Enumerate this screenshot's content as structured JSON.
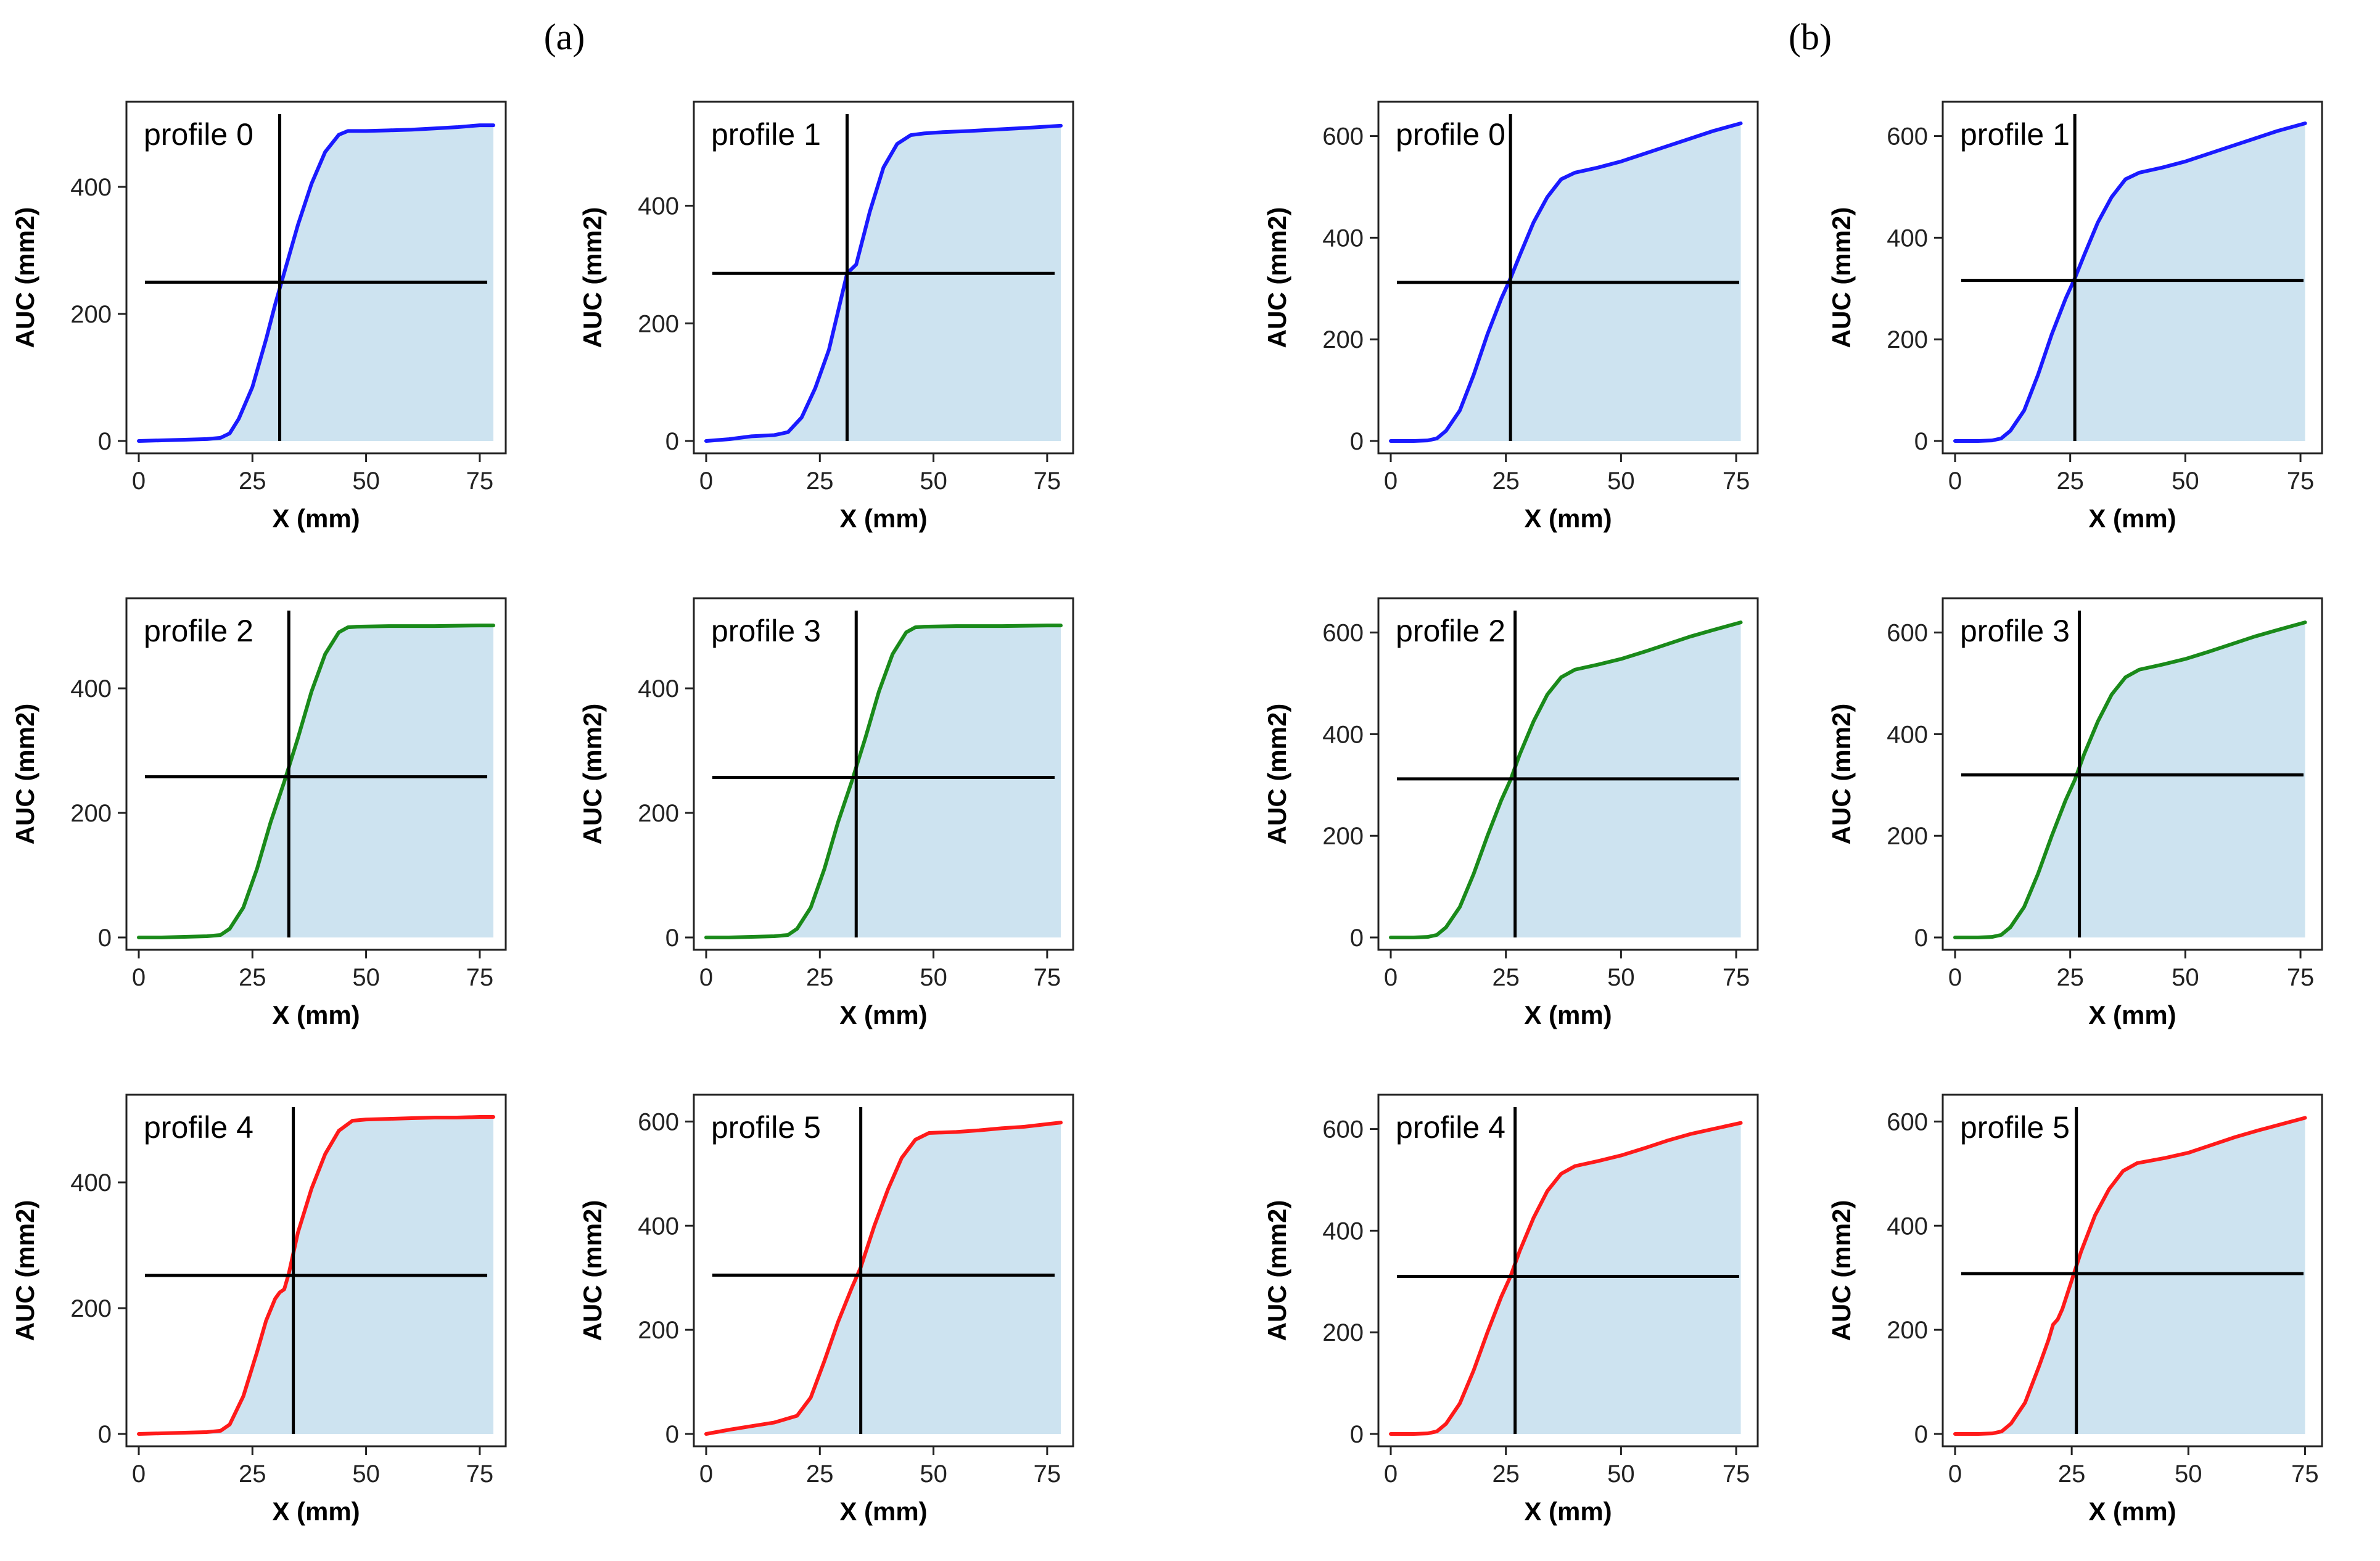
{
  "figure": {
    "group_labels": [
      "(a)",
      "(b)"
    ]
  },
  "chart_data": [
    {
      "type": "area",
      "group": "(a)",
      "title": "profile 0",
      "xlabel": "X (mm)",
      "ylabel": "AUC (mm2)",
      "color": "#1a1aff",
      "xlim": [
        0,
        78
      ],
      "ylim": [
        0,
        500
      ],
      "xticks": [
        0,
        25,
        50,
        75
      ],
      "yticks": [
        0,
        200,
        400
      ],
      "x": [
        0,
        5,
        10,
        15,
        18,
        20,
        22,
        25,
        28,
        30,
        32,
        35,
        38,
        41,
        44,
        46,
        50,
        55,
        60,
        65,
        70,
        75,
        78
      ],
      "y": [
        0,
        1,
        2,
        3,
        5,
        12,
        35,
        85,
        160,
        215,
        265,
        340,
        405,
        455,
        482,
        488,
        488,
        489,
        490,
        492,
        494,
        497,
        497
      ],
      "crosshair": {
        "x": 31,
        "y": 250
      }
    },
    {
      "type": "area",
      "group": "(a)",
      "title": "profile 1",
      "xlabel": "X (mm)",
      "ylabel": "AUC (mm2)",
      "color": "#1a1aff",
      "xlim": [
        0,
        78
      ],
      "ylim": [
        0,
        540
      ],
      "xticks": [
        0,
        25,
        50,
        75
      ],
      "yticks": [
        0,
        200,
        400
      ],
      "x": [
        0,
        5,
        10,
        15,
        18,
        21,
        24,
        27,
        29,
        31,
        33,
        36,
        39,
        42,
        45,
        48,
        52,
        58,
        65,
        72,
        78
      ],
      "y": [
        0,
        3,
        8,
        10,
        15,
        40,
        90,
        155,
        220,
        285,
        300,
        390,
        465,
        505,
        520,
        523,
        525,
        527,
        530,
        533,
        536
      ],
      "crosshair": {
        "x": 31,
        "y": 285
      }
    },
    {
      "type": "area",
      "group": "(a)",
      "title": "profile 2",
      "xlabel": "X (mm)",
      "ylabel": "AUC (mm2)",
      "color": "#1a8a1a",
      "xlim": [
        0,
        78
      ],
      "ylim": [
        0,
        510
      ],
      "xticks": [
        0,
        25,
        50,
        75
      ],
      "yticks": [
        0,
        200,
        400
      ],
      "x": [
        0,
        5,
        10,
        15,
        18,
        20,
        23,
        26,
        29,
        32,
        35,
        38,
        41,
        44,
        46,
        48,
        55,
        65,
        75,
        78
      ],
      "y": [
        0,
        0,
        1,
        2,
        4,
        14,
        48,
        110,
        185,
        250,
        320,
        395,
        455,
        490,
        498,
        499,
        500,
        500,
        501,
        501
      ],
      "crosshair": {
        "x": 33,
        "y": 258
      }
    },
    {
      "type": "area",
      "group": "(a)",
      "title": "profile 3",
      "xlabel": "X (mm)",
      "ylabel": "AUC (mm2)",
      "color": "#1a8a1a",
      "xlim": [
        0,
        78
      ],
      "ylim": [
        0,
        510
      ],
      "xticks": [
        0,
        25,
        50,
        75
      ],
      "yticks": [
        0,
        200,
        400
      ],
      "x": [
        0,
        5,
        10,
        15,
        18,
        20,
        23,
        26,
        29,
        32,
        35,
        38,
        41,
        44,
        46,
        48,
        55,
        65,
        75,
        78
      ],
      "y": [
        0,
        0,
        1,
        2,
        4,
        14,
        48,
        110,
        185,
        250,
        320,
        395,
        455,
        490,
        498,
        499,
        500,
        500,
        501,
        501
      ],
      "crosshair": {
        "x": 33,
        "y": 257
      }
    },
    {
      "type": "area",
      "group": "(a)",
      "title": "profile 4",
      "xlabel": "X (mm)",
      "ylabel": "AUC (mm2)",
      "color": "#ff1a1a",
      "xlim": [
        0,
        78
      ],
      "ylim": [
        0,
        505
      ],
      "xticks": [
        0,
        25,
        50,
        75
      ],
      "yticks": [
        0,
        200,
        400
      ],
      "x": [
        0,
        5,
        10,
        15,
        18,
        20,
        23,
        26,
        28,
        30,
        31,
        32,
        33,
        35,
        38,
        41,
        44,
        47,
        50,
        55,
        60,
        65,
        70,
        75,
        78
      ],
      "y": [
        0,
        1,
        2,
        3,
        5,
        15,
        60,
        130,
        180,
        215,
        225,
        230,
        255,
        320,
        390,
        445,
        482,
        498,
        500,
        501,
        502,
        503,
        503,
        504,
        504
      ],
      "crosshair": {
        "x": 34,
        "y": 252
      }
    },
    {
      "type": "area",
      "group": "(a)",
      "title": "profile 5",
      "xlabel": "X (mm)",
      "ylabel": "AUC (mm2)",
      "color": "#ff1a1a",
      "xlim": [
        0,
        78
      ],
      "ylim": [
        0,
        610
      ],
      "xticks": [
        0,
        25,
        50,
        75
      ],
      "yticks": [
        0,
        200,
        400,
        600
      ],
      "x": [
        0,
        5,
        10,
        15,
        20,
        23,
        26,
        29,
        32,
        34,
        37,
        40,
        43,
        46,
        49,
        55,
        60,
        65,
        70,
        75,
        78
      ],
      "y": [
        0,
        8,
        15,
        22,
        35,
        70,
        140,
        215,
        280,
        320,
        400,
        470,
        530,
        565,
        578,
        580,
        583,
        587,
        590,
        595,
        598
      ],
      "crosshair": {
        "x": 34,
        "y": 305
      }
    },
    {
      "type": "area",
      "group": "(b)",
      "title": "profile 0",
      "xlabel": "X (mm)",
      "ylabel": "AUC (mm2)",
      "color": "#1a1aff",
      "xlim": [
        0,
        77
      ],
      "ylim": [
        0,
        625
      ],
      "xticks": [
        0,
        25,
        50,
        75
      ],
      "yticks": [
        0,
        200,
        400,
        600
      ],
      "x": [
        0,
        5,
        8,
        10,
        12,
        15,
        18,
        21,
        24,
        26,
        28,
        31,
        34,
        37,
        40,
        45,
        50,
        55,
        60,
        65,
        70,
        76
      ],
      "y": [
        0,
        0,
        1,
        5,
        20,
        60,
        130,
        210,
        280,
        320,
        365,
        430,
        480,
        515,
        528,
        538,
        550,
        565,
        580,
        595,
        610,
        625
      ],
      "crosshair": {
        "x": 26,
        "y": 312
      }
    },
    {
      "type": "area",
      "group": "(b)",
      "title": "profile 1",
      "xlabel": "X (mm)",
      "ylabel": "AUC (mm2)",
      "color": "#1a1aff",
      "xlim": [
        0,
        77
      ],
      "ylim": [
        0,
        625
      ],
      "xticks": [
        0,
        25,
        50,
        75
      ],
      "yticks": [
        0,
        200,
        400,
        600
      ],
      "x": [
        0,
        5,
        8,
        10,
        12,
        15,
        18,
        21,
        24,
        26,
        28,
        31,
        34,
        37,
        40,
        45,
        50,
        55,
        60,
        65,
        70,
        76
      ],
      "y": [
        0,
        0,
        1,
        5,
        20,
        60,
        130,
        210,
        280,
        320,
        365,
        430,
        480,
        515,
        528,
        538,
        550,
        565,
        580,
        595,
        610,
        625
      ],
      "crosshair": {
        "x": 26,
        "y": 316
      }
    },
    {
      "type": "area",
      "group": "(b)",
      "title": "profile 2",
      "xlabel": "X (mm)",
      "ylabel": "AUC (mm2)",
      "color": "#1a8a1a",
      "xlim": [
        0,
        77
      ],
      "ylim": [
        0,
        625
      ],
      "xticks": [
        0,
        25,
        50,
        75
      ],
      "yticks": [
        0,
        200,
        400,
        600
      ],
      "x": [
        0,
        5,
        8,
        10,
        12,
        15,
        18,
        21,
        24,
        26,
        28,
        31,
        34,
        37,
        40,
        45,
        50,
        55,
        60,
        65,
        70,
        76
      ],
      "y": [
        0,
        0,
        1,
        5,
        20,
        60,
        125,
        200,
        270,
        310,
        360,
        425,
        478,
        512,
        527,
        537,
        548,
        562,
        577,
        592,
        605,
        620
      ],
      "crosshair": {
        "x": 27,
        "y": 312
      }
    },
    {
      "type": "area",
      "group": "(b)",
      "title": "profile 3",
      "xlabel": "X (mm)",
      "ylabel": "AUC (mm2)",
      "color": "#1a8a1a",
      "xlim": [
        0,
        77
      ],
      "ylim": [
        0,
        625
      ],
      "xticks": [
        0,
        25,
        50,
        75
      ],
      "yticks": [
        0,
        200,
        400,
        600
      ],
      "x": [
        0,
        5,
        8,
        10,
        12,
        15,
        18,
        21,
        24,
        26,
        28,
        31,
        34,
        37,
        40,
        45,
        50,
        55,
        60,
        65,
        70,
        76
      ],
      "y": [
        0,
        0,
        1,
        5,
        20,
        60,
        125,
        200,
        270,
        310,
        360,
        425,
        478,
        512,
        527,
        537,
        548,
        562,
        577,
        592,
        605,
        620
      ],
      "crosshair": {
        "x": 27,
        "y": 320
      }
    },
    {
      "type": "area",
      "group": "(b)",
      "title": "profile 4",
      "xlabel": "X (mm)",
      "ylabel": "AUC (mm2)",
      "color": "#ff1a1a",
      "xlim": [
        0,
        77
      ],
      "ylim": [
        0,
        625
      ],
      "xticks": [
        0,
        25,
        50,
        75
      ],
      "yticks": [
        0,
        200,
        400,
        600
      ],
      "x": [
        0,
        5,
        8,
        10,
        12,
        15,
        18,
        21,
        24,
        26,
        28,
        31,
        34,
        37,
        40,
        45,
        50,
        55,
        60,
        65,
        70,
        76
      ],
      "y": [
        0,
        0,
        1,
        5,
        20,
        60,
        125,
        200,
        270,
        310,
        360,
        425,
        478,
        512,
        527,
        537,
        548,
        562,
        577,
        590,
        600,
        612
      ],
      "crosshair": {
        "x": 27,
        "y": 310
      }
    },
    {
      "type": "area",
      "group": "(b)",
      "title": "profile 5",
      "xlabel": "X (mm)",
      "ylabel": "AUC (mm2)",
      "color": "#ff1a1a",
      "xlim": [
        0,
        76
      ],
      "ylim": [
        0,
        610
      ],
      "xticks": [
        0,
        25,
        50,
        75
      ],
      "yticks": [
        0,
        200,
        400,
        600
      ],
      "x": [
        0,
        5,
        8,
        10,
        12,
        15,
        18,
        20,
        21,
        22,
        23,
        25,
        27,
        30,
        33,
        36,
        39,
        45,
        50,
        55,
        60,
        65,
        70,
        75
      ],
      "y": [
        0,
        0,
        1,
        5,
        20,
        60,
        130,
        180,
        210,
        220,
        240,
        295,
        350,
        420,
        470,
        505,
        520,
        530,
        540,
        555,
        570,
        583,
        595,
        607
      ],
      "crosshair": {
        "x": 26,
        "y": 308
      }
    }
  ]
}
